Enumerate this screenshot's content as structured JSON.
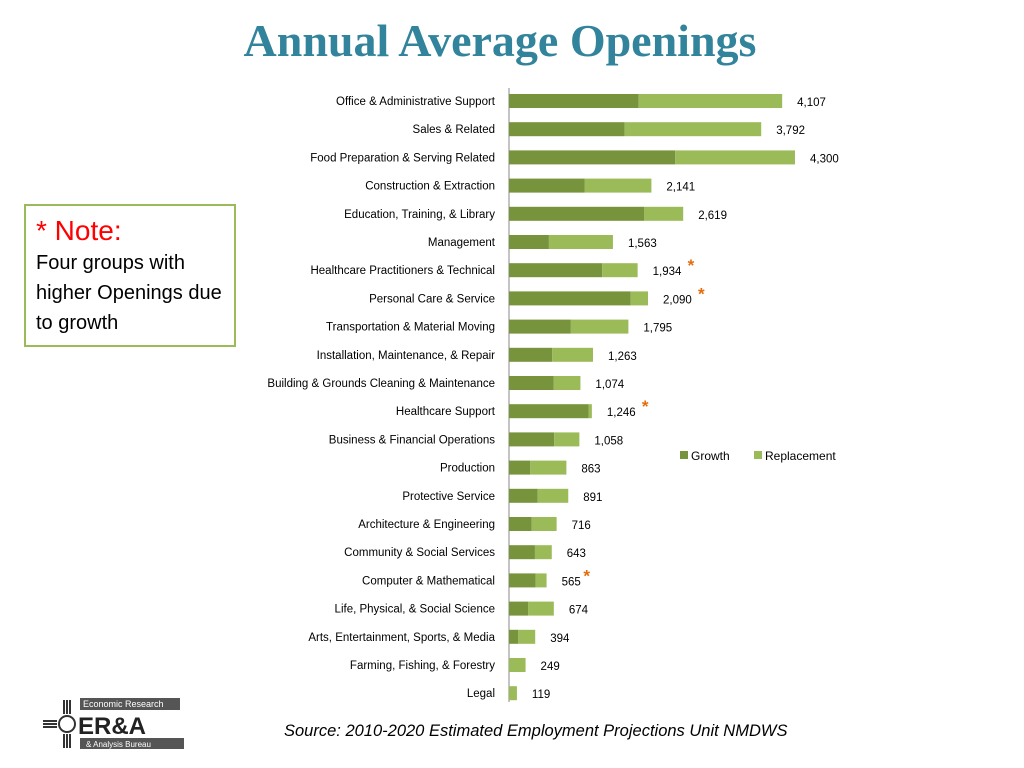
{
  "title": "Annual Average Openings",
  "note": {
    "heading": "* Note:",
    "body": "Four groups with higher  Openings due to growth"
  },
  "source": "Source: 2010-2020 Estimated Employment Projections Unit NMDWS",
  "logo": {
    "text_top": "Economic Research",
    "text_main": "ER&A",
    "text_bottom": "& Analysis Bureau"
  },
  "colors": {
    "title": "#31849b",
    "growth": "#77933c",
    "replacement": "#9bbb59",
    "asterisk": "#e46c0a",
    "note_border": "#9bbb59"
  },
  "chart_data": {
    "type": "bar",
    "orientation": "horizontal",
    "stacked": true,
    "title": "Annual Average Openings",
    "legend": {
      "position": "right",
      "entries": [
        "Growth",
        "Replacement"
      ]
    },
    "categories": [
      "Office & Administrative Support",
      "Sales & Related",
      "Food Preparation & Serving Related",
      "Construction & Extraction",
      "Education, Training, & Library",
      "Management",
      "Healthcare Practitioners & Technical",
      "Personal Care & Service",
      "Transportation & Material Moving",
      "Installation, Maintenance, & Repair",
      "Building & Grounds Cleaning & Maintenance",
      "Healthcare Support",
      "Business & Financial Operations",
      "Production",
      "Protective Service",
      "Architecture & Engineering",
      "Community & Social Services",
      "Computer & Mathematical",
      "Life, Physical, & Social Science",
      "Arts, Entertainment, Sports, & Media",
      "Farming, Fishing, & Forestry",
      "Legal"
    ],
    "series": [
      {
        "name": "Growth",
        "values": [
          1950,
          1740,
          2500,
          1140,
          2030,
          600,
          1400,
          1830,
          930,
          650,
          670,
          1200,
          680,
          320,
          430,
          340,
          390,
          400,
          290,
          140,
          0,
          0
        ]
      },
      {
        "name": "Replacement",
        "values": [
          2157,
          2052,
          1800,
          1001,
          589,
          963,
          534,
          260,
          865,
          613,
          404,
          46,
          378,
          543,
          461,
          376,
          253,
          165,
          384,
          254,
          249,
          119
        ]
      }
    ],
    "totals": [
      "4,107",
      "3,792",
      "4,300",
      "2,141",
      "2,619",
      "1,563",
      "1,934",
      "2,090",
      "1,795",
      "1,263",
      "1,074",
      "1,246",
      "1,058",
      "863",
      "891",
      "716",
      "643",
      "565",
      "674",
      "394",
      "249",
      "119"
    ],
    "growth_flag": [
      false,
      false,
      false,
      false,
      false,
      false,
      true,
      true,
      false,
      false,
      false,
      true,
      false,
      false,
      false,
      false,
      false,
      true,
      false,
      false,
      false,
      false
    ],
    "flag_symbol": "*",
    "xlim": [
      0,
      4500
    ],
    "grid": false
  }
}
